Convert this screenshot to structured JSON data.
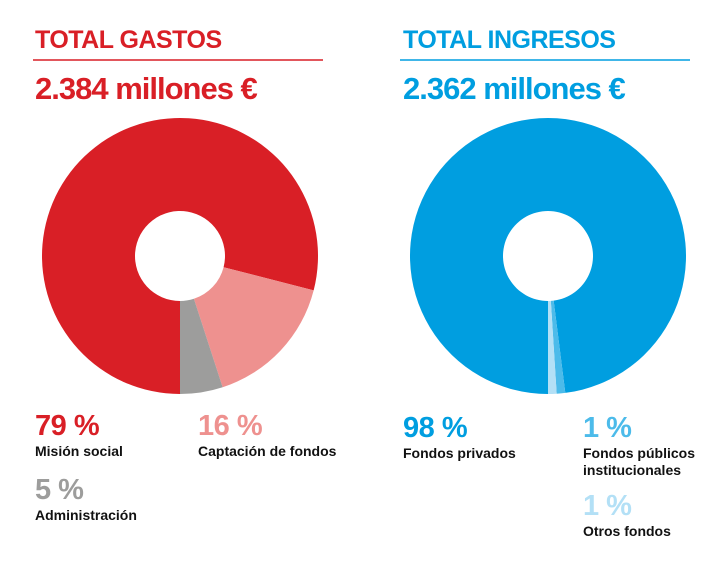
{
  "chart_data": [
    {
      "type": "pie",
      "title": "TOTAL GASTOS",
      "subtitle": "2.384 millones €",
      "categories": [
        "Misión social",
        "Captación de fondos",
        "Administración"
      ],
      "values": [
        79,
        16,
        5
      ],
      "value_labels": [
        "79 %",
        "16 %",
        "5 %"
      ],
      "colors": [
        "#d91f26",
        "#ee918f",
        "#9d9d9c"
      ],
      "title_color": "#d91f26"
    },
    {
      "type": "pie",
      "title": "TOTAL INGRESOS",
      "subtitle": "2.362 millones €",
      "categories": [
        "Fondos privados",
        "Fondos públicos institucionales",
        "Otros fondos"
      ],
      "values": [
        98,
        1,
        1
      ],
      "value_labels": [
        "98 %",
        "1 %",
        "1 %"
      ],
      "colors": [
        "#009ee0",
        "#4cbbea",
        "#b3e0f6"
      ],
      "title_color": "#009ee0"
    }
  ]
}
